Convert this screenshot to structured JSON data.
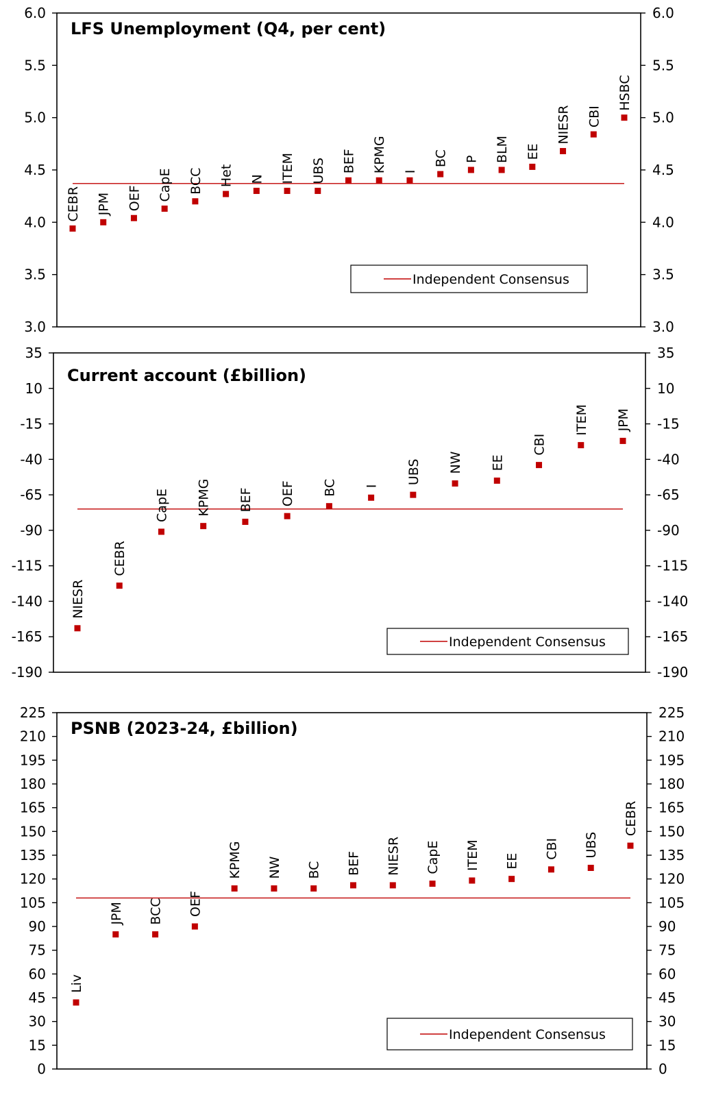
{
  "marker_color": "#c00000",
  "consensus_color": "#c00000",
  "chart_data": [
    {
      "type": "scatter",
      "title": "LFS Unemployment  (Q4, per cent)",
      "ylim": [
        3.0,
        6.0
      ],
      "yticks": [
        "3.0",
        "3.5",
        "4.0",
        "4.5",
        "5.0",
        "5.5",
        "6.0"
      ],
      "categories": [
        "CEBR",
        "JPM",
        "OEF",
        "CapE",
        "BCC",
        "Het",
        "N",
        "ITEM",
        "UBS",
        "BEF",
        "KPMG",
        "I",
        "BC",
        "P",
        "BLM",
        "EE",
        "NIESR",
        "CBI",
        "HSBC"
      ],
      "values": [
        3.94,
        4.0,
        4.04,
        4.13,
        4.2,
        4.27,
        4.3,
        4.3,
        4.3,
        4.4,
        4.4,
        4.4,
        4.46,
        4.5,
        4.5,
        4.53,
        4.68,
        4.84,
        5.0
      ],
      "consensus": 4.37,
      "legend": "Independent Consensus",
      "legend_position": "bottom-right",
      "grid": false
    },
    {
      "type": "scatter",
      "title": "Current account (£billion)",
      "ylim": [
        -190,
        35
      ],
      "yticks": [
        "-190",
        "-165",
        "-140",
        "-115",
        "-90",
        "-65",
        "-40",
        "-15",
        "10",
        "35"
      ],
      "categories": [
        "NIESR",
        "CEBR",
        "CapE",
        "KPMG",
        "BEF",
        "OEF",
        "BC",
        "I",
        "UBS",
        "NW",
        "EE",
        "CBI",
        "ITEM",
        "JPM"
      ],
      "values": [
        -159,
        -129,
        -91,
        -87,
        -84,
        -80,
        -73,
        -67,
        -65,
        -57,
        -55,
        -44,
        -30,
        -27
      ],
      "consensus": -75,
      "legend": "Independent Consensus",
      "legend_position": "bottom-right",
      "grid": false
    },
    {
      "type": "scatter",
      "title": "PSNB (2023-24, £billion)",
      "ylim": [
        0,
        225
      ],
      "yticks": [
        "0",
        "15",
        "30",
        "45",
        "60",
        "75",
        "90",
        "105",
        "120",
        "135",
        "150",
        "165",
        "180",
        "195",
        "210",
        "225"
      ],
      "categories": [
        "Liv",
        "JPM",
        "BCC",
        "OEF",
        "KPMG",
        "NW",
        "BC",
        "BEF",
        "NIESR",
        "CapE",
        "ITEM",
        "EE",
        "CBI",
        "UBS",
        "CEBR"
      ],
      "values": [
        42,
        85,
        85,
        90,
        114,
        114,
        114,
        116,
        116,
        117,
        119,
        120,
        126,
        127,
        141
      ],
      "consensus": 108,
      "legend": "Independent Consensus",
      "legend_position": "bottom-right",
      "grid": false
    }
  ]
}
